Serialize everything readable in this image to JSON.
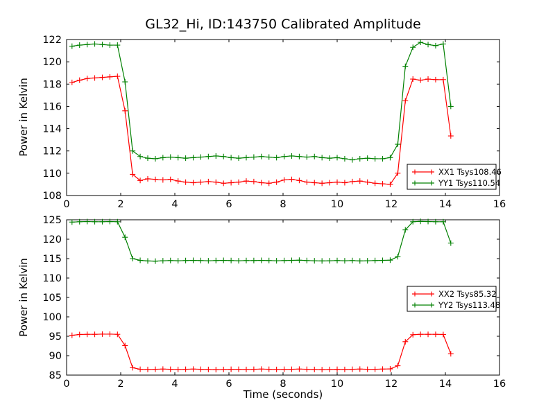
{
  "title": "GL32_Hi, ID:143750 Calibrated Amplitude",
  "xlabel": "Time (seconds)",
  "colors": {
    "xx_series": "#ff0000",
    "yy_series": "#008000",
    "frame": "#000000",
    "background": "#ffffff"
  },
  "chart_data": [
    {
      "type": "line",
      "ylabel": "Power in Kelvin",
      "xlim": [
        0,
        16
      ],
      "ylim": [
        108,
        122
      ],
      "xticks": [
        0,
        2,
        4,
        6,
        8,
        10,
        12,
        14,
        16
      ],
      "yticks": [
        108,
        110,
        112,
        114,
        116,
        118,
        120,
        122
      ],
      "grid": false,
      "legend_position": "center-right",
      "legend_entries": [
        "XX1 Tsys108.46",
        "YY1 Tsys110.54"
      ],
      "x": [
        0.2,
        0.48,
        0.76,
        1.04,
        1.32,
        1.6,
        1.88,
        2.16,
        2.44,
        2.72,
        3.0,
        3.28,
        3.56,
        3.84,
        4.12,
        4.4,
        4.68,
        4.96,
        5.24,
        5.52,
        5.8,
        6.08,
        6.36,
        6.64,
        6.92,
        7.2,
        7.48,
        7.76,
        8.04,
        8.32,
        8.6,
        8.88,
        9.16,
        9.44,
        9.72,
        10.0,
        10.28,
        10.56,
        10.84,
        11.12,
        11.4,
        11.68,
        11.96,
        12.24,
        12.52,
        12.8,
        13.08,
        13.36,
        13.64,
        13.92,
        14.2
      ],
      "series": [
        {
          "name": "XX1 Tsys108.46",
          "color": "#ff0000",
          "marker": "plus",
          "values": [
            118.15,
            118.35,
            118.5,
            118.55,
            118.6,
            118.65,
            118.7,
            115.6,
            109.9,
            109.35,
            109.5,
            109.45,
            109.4,
            109.45,
            109.3,
            109.2,
            109.15,
            109.2,
            109.25,
            109.2,
            109.1,
            109.15,
            109.2,
            109.3,
            109.25,
            109.15,
            109.1,
            109.2,
            109.4,
            109.45,
            109.35,
            109.2,
            109.15,
            109.1,
            109.15,
            109.2,
            109.15,
            109.25,
            109.3,
            109.2,
            109.1,
            109.05,
            109.0,
            110.0,
            116.5,
            118.45,
            118.35,
            118.45,
            118.4,
            118.4,
            113.35
          ]
        },
        {
          "name": "YY1 Tsys110.54",
          "color": "#008000",
          "marker": "plus",
          "values": [
            121.4,
            121.5,
            121.55,
            121.6,
            121.55,
            121.5,
            121.5,
            118.2,
            112.0,
            111.5,
            111.35,
            111.3,
            111.4,
            111.45,
            111.4,
            111.35,
            111.4,
            111.45,
            111.5,
            111.55,
            111.5,
            111.4,
            111.35,
            111.4,
            111.45,
            111.5,
            111.45,
            111.4,
            111.5,
            111.55,
            111.5,
            111.45,
            111.5,
            111.4,
            111.35,
            111.4,
            111.3,
            111.2,
            111.3,
            111.35,
            111.3,
            111.3,
            111.4,
            112.6,
            119.6,
            121.3,
            121.75,
            121.55,
            121.45,
            121.6,
            116.0
          ]
        }
      ]
    },
    {
      "type": "line",
      "ylabel": "Power in Kelvin",
      "xlim": [
        0,
        16
      ],
      "ylim": [
        85,
        125
      ],
      "xticks": [
        0,
        2,
        4,
        6,
        8,
        10,
        12,
        14,
        16
      ],
      "yticks": [
        85,
        90,
        95,
        100,
        105,
        110,
        115,
        120,
        125
      ],
      "grid": false,
      "legend_position": "center-right",
      "legend_entries": [
        "XX2 Tsys85.32",
        "YY2 Tsys113.48"
      ],
      "x": [
        0.2,
        0.48,
        0.76,
        1.04,
        1.32,
        1.6,
        1.88,
        2.16,
        2.44,
        2.72,
        3.0,
        3.28,
        3.56,
        3.84,
        4.12,
        4.4,
        4.68,
        4.96,
        5.24,
        5.52,
        5.8,
        6.08,
        6.36,
        6.64,
        6.92,
        7.2,
        7.48,
        7.76,
        8.04,
        8.32,
        8.6,
        8.88,
        9.16,
        9.44,
        9.72,
        10.0,
        10.28,
        10.56,
        10.84,
        11.12,
        11.4,
        11.68,
        11.96,
        12.24,
        12.52,
        12.8,
        13.08,
        13.36,
        13.64,
        13.92,
        14.2
      ],
      "series": [
        {
          "name": "XX2 Tsys85.32",
          "color": "#ff0000",
          "marker": "plus",
          "values": [
            95.25,
            95.45,
            95.5,
            95.5,
            95.55,
            95.55,
            95.5,
            92.6,
            86.9,
            86.5,
            86.45,
            86.5,
            86.55,
            86.5,
            86.45,
            86.5,
            86.55,
            86.5,
            86.45,
            86.4,
            86.45,
            86.5,
            86.5,
            86.45,
            86.5,
            86.55,
            86.5,
            86.45,
            86.5,
            86.5,
            86.55,
            86.5,
            86.45,
            86.4,
            86.45,
            86.5,
            86.45,
            86.5,
            86.55,
            86.5,
            86.5,
            86.55,
            86.6,
            87.4,
            93.6,
            95.4,
            95.5,
            95.5,
            95.5,
            95.45,
            90.5
          ]
        },
        {
          "name": "YY2 Tsys113.48",
          "color": "#008000",
          "marker": "plus",
          "values": [
            124.4,
            124.5,
            124.55,
            124.5,
            124.5,
            124.55,
            124.5,
            120.5,
            115.0,
            114.55,
            114.4,
            114.35,
            114.45,
            114.5,
            114.45,
            114.5,
            114.55,
            114.5,
            114.45,
            114.5,
            114.55,
            114.5,
            114.45,
            114.5,
            114.5,
            114.55,
            114.5,
            114.45,
            114.5,
            114.55,
            114.6,
            114.5,
            114.45,
            114.4,
            114.45,
            114.5,
            114.45,
            114.5,
            114.4,
            114.45,
            114.5,
            114.55,
            114.6,
            115.5,
            122.4,
            124.5,
            124.6,
            124.55,
            124.5,
            124.5,
            119.0
          ]
        }
      ]
    }
  ]
}
